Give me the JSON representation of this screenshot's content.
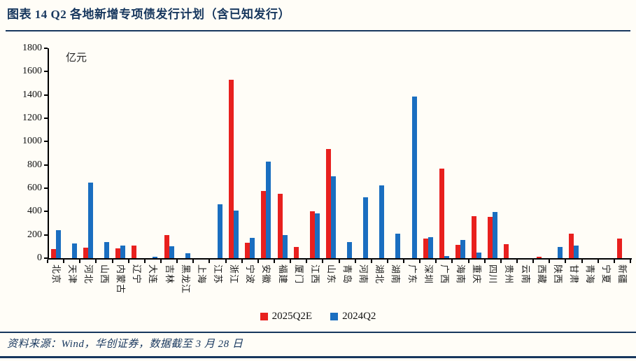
{
  "figure": {
    "title": "图表 14  Q2 各地新增专项债发行计划（含已知发行）",
    "source_note": "资料来源：Wind，华创证券，数据截至 3 月 28 日"
  },
  "colors": {
    "accent_navy": "#17375e",
    "series_red": "#e8201e",
    "series_blue": "#1a6ec0",
    "axis_black": "#000000"
  },
  "chart_data": {
    "type": "bar",
    "title": "",
    "unit_label": "亿元",
    "xlabel": "",
    "ylabel": "",
    "ylim": [
      0,
      1800
    ],
    "yticks": [
      0,
      200,
      400,
      600,
      800,
      1000,
      1200,
      1400,
      1600,
      1800
    ],
    "grid": false,
    "legend_position": "bottom",
    "categories": [
      "北京",
      "天津",
      "河北",
      "山西",
      "内蒙古",
      "辽宁",
      "大连",
      "吉林",
      "黑龙江",
      "上海",
      "江苏",
      "浙江",
      "宁波",
      "安徽",
      "福建",
      "厦门",
      "江西",
      "山东",
      "青岛",
      "河南",
      "湖北",
      "湖南",
      "广东",
      "深圳",
      "广西",
      "海南",
      "重庆",
      "四川",
      "贵州",
      "云南",
      "西藏",
      "陕西",
      "甘肃",
      "青海",
      "宁夏",
      "新疆"
    ],
    "series": [
      {
        "name": "2025Q2E",
        "color": "#e8201e",
        "values": [
          80,
          0,
          90,
          0,
          85,
          105,
          0,
          195,
          0,
          0,
          0,
          1530,
          130,
          575,
          550,
          95,
          400,
          935,
          0,
          0,
          0,
          0,
          0,
          165,
          770,
          115,
          360,
          355,
          120,
          0,
          10,
          0,
          210,
          0,
          0,
          165
        ]
      },
      {
        "name": "2024Q2",
        "color": "#1a6ec0",
        "values": [
          240,
          125,
          645,
          140,
          110,
          0,
          10,
          100,
          40,
          0,
          460,
          405,
          175,
          825,
          195,
          0,
          385,
          700,
          140,
          520,
          625,
          210,
          1385,
          180,
          15,
          155,
          45,
          395,
          0,
          0,
          0,
          95,
          105,
          0,
          0,
          0
        ]
      }
    ]
  }
}
